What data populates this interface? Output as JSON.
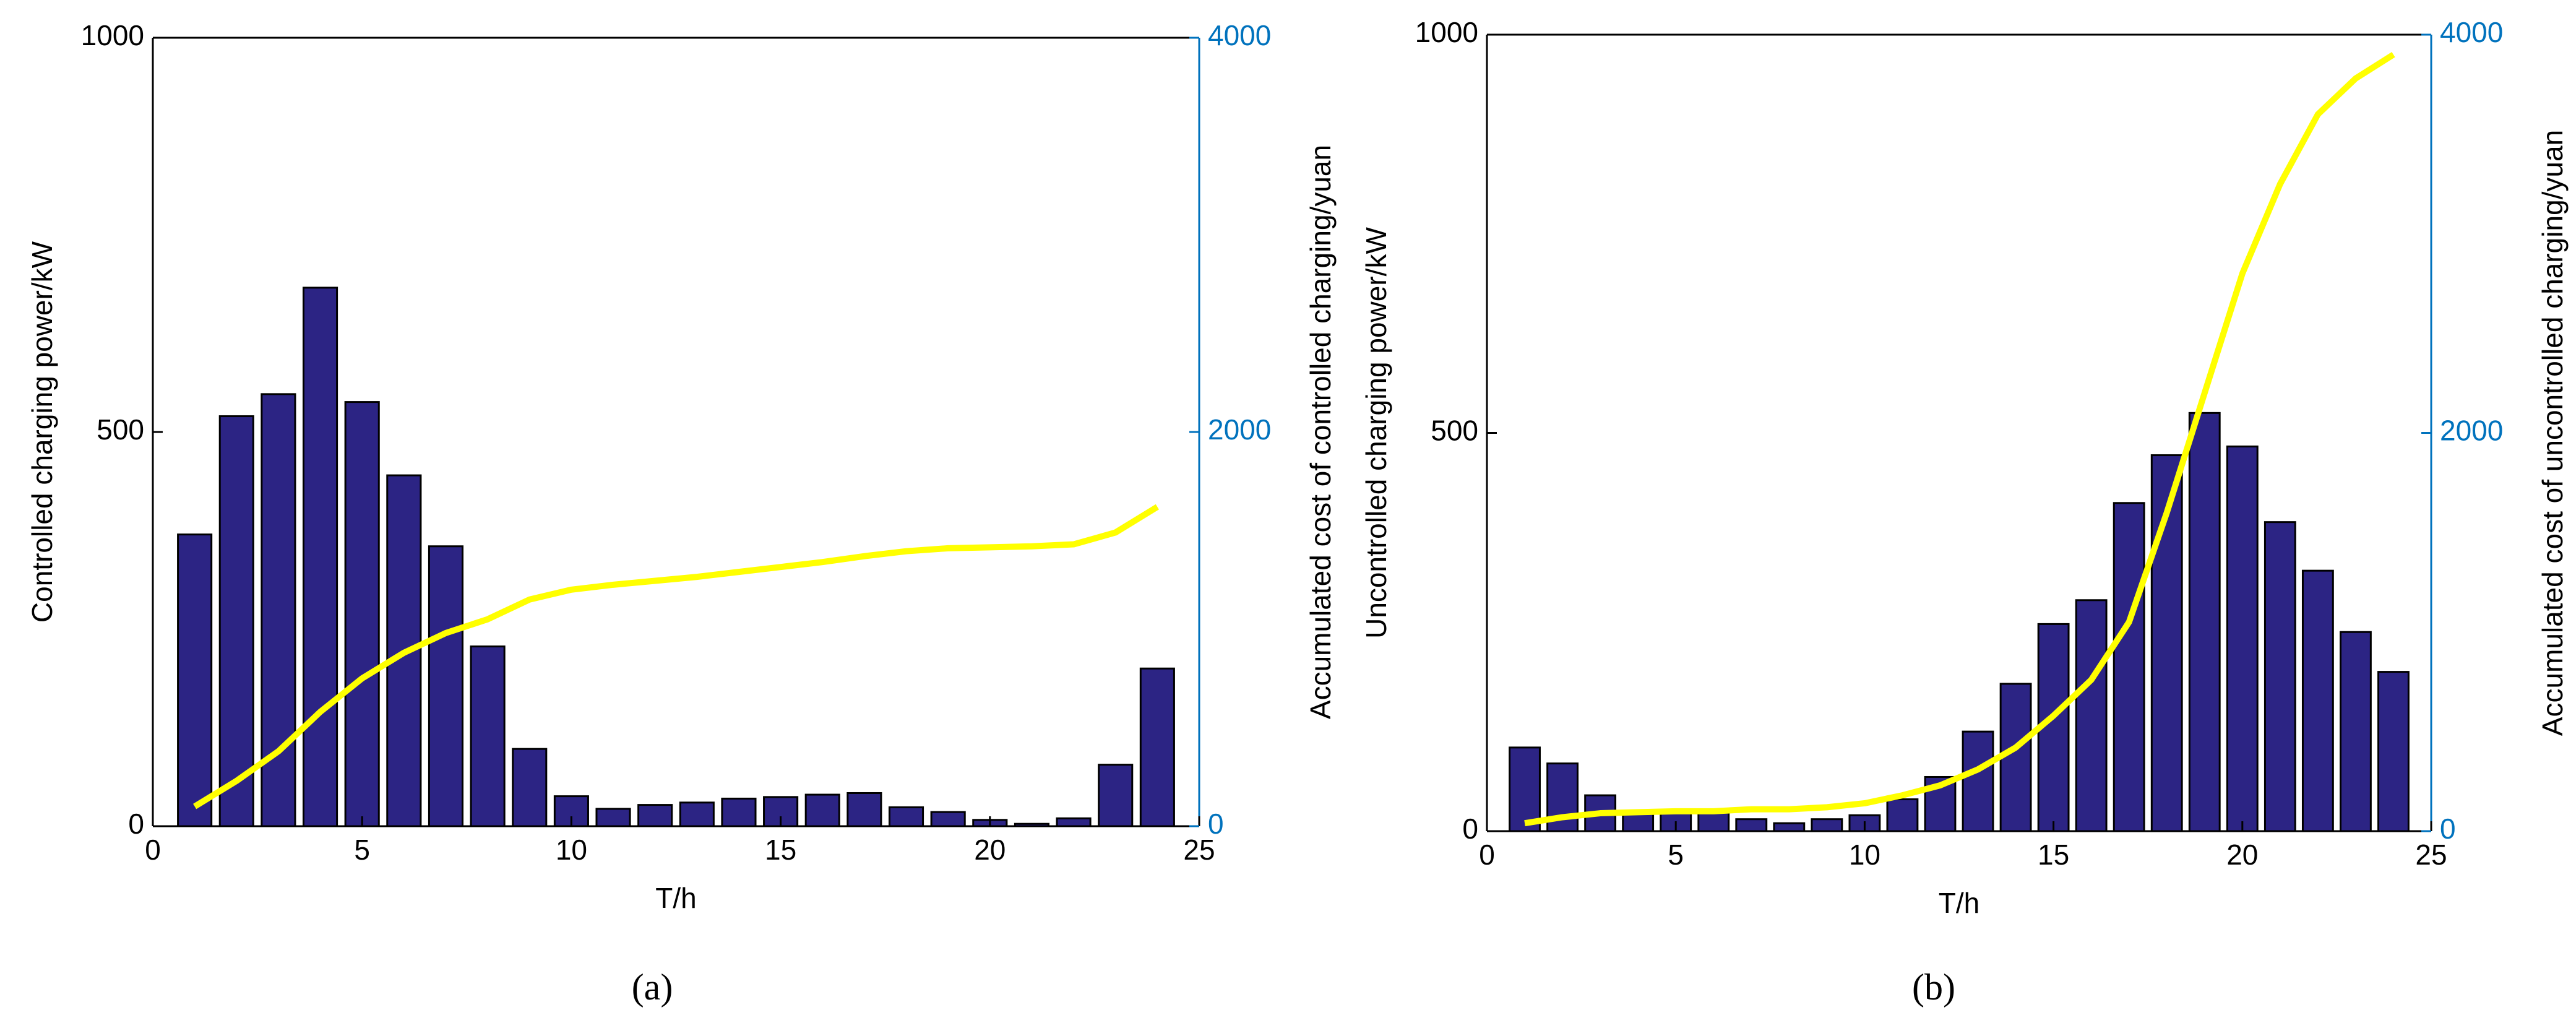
{
  "chart_data": [
    {
      "type": "bar",
      "caption": "(a)",
      "xlabel": "T/h",
      "ylabel": "Controlled charging power/kW",
      "y2label": "Accumulated cost of controlled charging/yuan",
      "x": [
        1,
        2,
        3,
        4,
        5,
        6,
        7,
        8,
        9,
        10,
        11,
        12,
        13,
        14,
        15,
        16,
        17,
        18,
        19,
        20,
        21,
        22,
        23,
        24
      ],
      "series": [
        {
          "color": "#2c2484",
          "values": [
            370,
            520,
            548,
            683,
            538,
            445,
            355,
            228,
            98,
            38,
            22,
            27,
            30,
            35,
            37,
            40,
            42,
            24,
            18,
            8,
            3,
            10,
            78,
            200
          ]
        },
        {
          "type": "line",
          "axis": "y2",
          "color": "#ffff00",
          "values": [
            100,
            230,
            380,
            580,
            750,
            880,
            980,
            1050,
            1150,
            1200,
            1225,
            1245,
            1265,
            1290,
            1315,
            1340,
            1370,
            1395,
            1410,
            1415,
            1420,
            1430,
            1490,
            1620
          ]
        }
      ],
      "xlim": [
        0,
        25
      ],
      "xticks": [
        0,
        5,
        10,
        15,
        20,
        25
      ],
      "ylim": [
        0,
        1000
      ],
      "yticks": [
        0,
        500,
        1000
      ],
      "y2lim": [
        0,
        4000
      ],
      "y2ticks": [
        0,
        2000,
        4000
      ],
      "y2color": "#0072bd"
    },
    {
      "type": "bar",
      "caption": "(b)",
      "xlabel": "T/h",
      "ylabel": "Uncontrolled charging power/kW",
      "y2label": "Accumulated cost of uncontrolled charging/yuan",
      "x": [
        1,
        2,
        3,
        4,
        5,
        6,
        7,
        8,
        9,
        10,
        11,
        12,
        13,
        14,
        15,
        16,
        17,
        18,
        19,
        20,
        21,
        22,
        23,
        24
      ],
      "series": [
        {
          "color": "#2c2484",
          "values": [
            105,
            85,
            45,
            25,
            25,
            25,
            15,
            10,
            15,
            20,
            40,
            68,
            125,
            185,
            260,
            290,
            412,
            472,
            525,
            483,
            388,
            327,
            250,
            200
          ]
        },
        {
          "type": "line",
          "axis": "y2",
          "color": "#ffff00",
          "values": [
            40,
            70,
            90,
            95,
            100,
            100,
            110,
            110,
            120,
            140,
            180,
            230,
            310,
            420,
            580,
            760,
            1050,
            1600,
            2200,
            2800,
            3250,
            3600,
            3780,
            3900
          ]
        }
      ],
      "xlim": [
        0,
        25
      ],
      "xticks": [
        0,
        5,
        10,
        15,
        20,
        25
      ],
      "ylim": [
        0,
        1000
      ],
      "yticks": [
        0,
        500,
        1000
      ],
      "y2lim": [
        0,
        4000
      ],
      "y2ticks": [
        0,
        2000,
        4000
      ],
      "y2color": "#0072bd"
    }
  ]
}
